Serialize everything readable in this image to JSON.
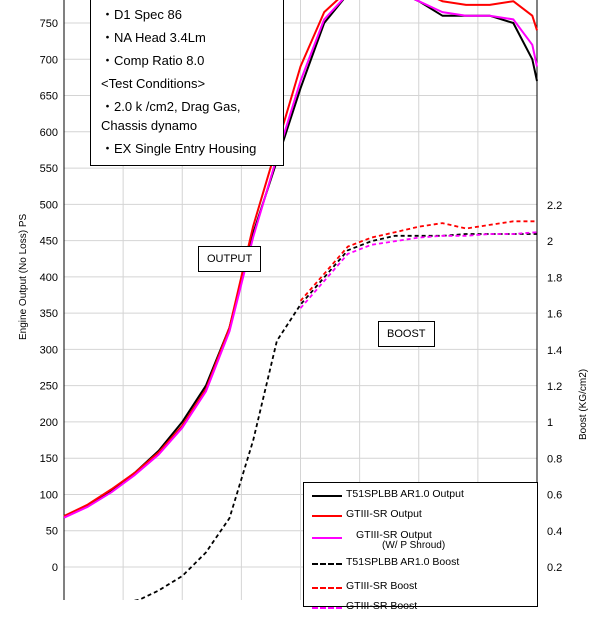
{
  "notes": [
    "・D1 Spec 86",
    "・NA Head 3.4Lm",
    "・Comp Ratio 8.0",
    "<Test Conditions>",
    "・2.0 k /cm2, Drag Gas,",
    "Chassis dynamo",
    "・EX Single Entry Housing"
  ],
  "tags": {
    "output": "OUTPUT",
    "boost": "BOOST"
  },
  "chart_data": {
    "type": "line",
    "ylabel_left": "Engine Output (No Loss) PS",
    "ylabel_right": "Boost (KG/cm2)",
    "left_ticks": [
      0,
      50,
      100,
      150,
      200,
      250,
      300,
      350,
      400,
      450,
      500,
      550,
      600,
      650,
      700,
      750
    ],
    "right_ticks": [
      "0.2",
      "0.4",
      "0.6",
      "0.8",
      "1",
      "1.2",
      "1.4",
      "1.6",
      "1.8",
      "2",
      "2.2"
    ],
    "ylim_left": [
      -40,
      790
    ],
    "ylim_right": [
      0,
      2.3
    ],
    "xlim": [
      0,
      100
    ],
    "grid": true,
    "series": [
      {
        "name": "T51SPLBB AR1.0 Output",
        "axis": "left",
        "color": "#000000",
        "dash": "solid",
        "x": [
          0,
          5,
          10,
          15,
          20,
          25,
          30,
          35,
          40,
          45,
          50,
          55,
          60,
          65,
          70,
          75,
          80,
          85,
          90,
          95,
          99,
          100
        ],
        "y": [
          70,
          85,
          105,
          130,
          160,
          200,
          250,
          330,
          460,
          560,
          660,
          750,
          790,
          800,
          795,
          780,
          760,
          760,
          760,
          750,
          700,
          670
        ]
      },
      {
        "name": "GTIII-SR Output",
        "axis": "left",
        "color": "#ff0000",
        "dash": "solid",
        "x": [
          0,
          5,
          10,
          15,
          20,
          25,
          30,
          35,
          40,
          45,
          50,
          55,
          60,
          65,
          70,
          75,
          80,
          85,
          90,
          95,
          99,
          100
        ],
        "y": [
          70,
          86,
          107,
          130,
          158,
          195,
          245,
          330,
          470,
          580,
          690,
          765,
          795,
          810,
          805,
          795,
          780,
          775,
          775,
          780,
          760,
          740
        ]
      },
      {
        "name": "GTIII-SR Output",
        "sub": "(W/ P Shroud)",
        "axis": "left",
        "color": "#ff00ff",
        "dash": "solid",
        "x": [
          0,
          5,
          10,
          15,
          20,
          25,
          30,
          35,
          40,
          45,
          50,
          55,
          60,
          65,
          70,
          75,
          80,
          85,
          90,
          95,
          99,
          100
        ],
        "y": [
          68,
          83,
          103,
          127,
          155,
          192,
          242,
          325,
          455,
          565,
          670,
          755,
          790,
          800,
          795,
          780,
          765,
          760,
          760,
          755,
          720,
          690
        ]
      },
      {
        "name": "T51SPLBB AR1.0 Boost",
        "axis": "right",
        "color": "#000000",
        "dash": "4,3",
        "x": [
          12,
          16,
          20,
          25,
          30,
          35,
          40,
          45,
          50,
          55,
          60,
          65,
          70,
          75,
          80,
          85,
          90,
          95,
          100
        ],
        "y": [
          0,
          0.02,
          0.07,
          0.15,
          0.28,
          0.47,
          0.9,
          1.45,
          1.65,
          1.8,
          1.95,
          2.0,
          2.03,
          2.03,
          2.03,
          2.04,
          2.04,
          2.04,
          2.04
        ]
      },
      {
        "name": "GTIII-SR Boost",
        "axis": "right",
        "color": "#ff0000",
        "dash": "4,3",
        "x": [
          50,
          55,
          60,
          65,
          70,
          75,
          80,
          85,
          90,
          95,
          100
        ],
        "y": [
          1.67,
          1.82,
          1.97,
          2.02,
          2.05,
          2.08,
          2.1,
          2.07,
          2.09,
          2.11,
          2.11
        ]
      },
      {
        "name": "GTIII-SR Boost",
        "axis": "right",
        "color": "#ff00ff",
        "dash": "4,3",
        "x": [
          50,
          55,
          60,
          65,
          70,
          75,
          80,
          85,
          90,
          95,
          100
        ],
        "y": [
          1.63,
          1.78,
          1.93,
          1.98,
          2.0,
          2.02,
          2.03,
          2.03,
          2.04,
          2.04,
          2.05
        ]
      }
    ]
  }
}
